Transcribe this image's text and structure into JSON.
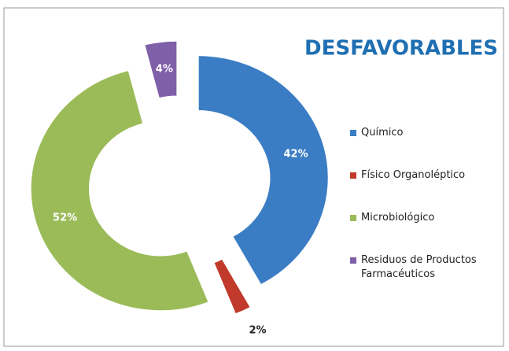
{
  "chart_data": {
    "type": "donut",
    "title": "DESFAVORABLES",
    "categories": [
      "Químico",
      "Físico Organoléptico",
      "Microbiológico",
      "Residuos de Productos Farmacéuticos"
    ],
    "values": [
      42,
      2,
      52,
      4
    ],
    "value_labels": [
      "42%",
      "2%",
      "52%",
      "4%"
    ],
    "colors": [
      "#3b7dc4",
      "#c0392b",
      "#9bbb59",
      "#7f5fa8"
    ],
    "legend": "right"
  }
}
